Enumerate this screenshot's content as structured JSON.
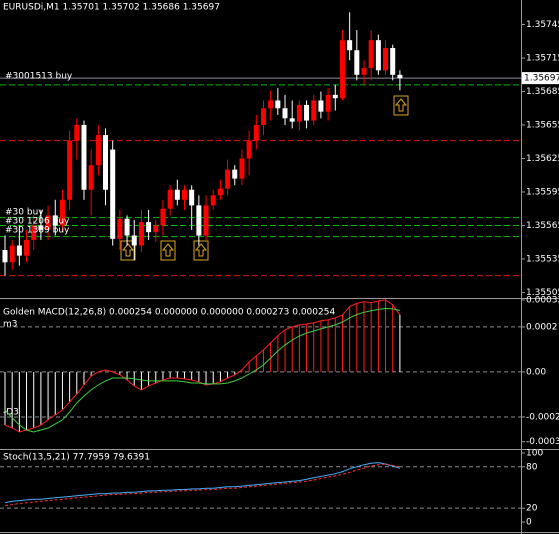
{
  "chart_data": [
    {
      "type": "candlestick",
      "title": "EURUSDi,M1  1.35701 1.35702 1.35686 1.35697",
      "up_color": "#ff0000",
      "down_color": "#ffffff",
      "open": [
        1.35543,
        1.35532,
        1.35547,
        1.35538,
        1.35552,
        1.35565,
        1.35561,
        1.35574,
        1.35565,
        1.35588,
        1.35641,
        1.35655,
        1.35597,
        1.35619,
        1.35646,
        1.35633,
        1.35553,
        1.35571,
        1.35556,
        1.35547,
        1.35568,
        1.35559,
        1.35565,
        1.3558,
        1.35597,
        1.35588,
        1.35597,
        1.35583,
        1.35556,
        1.35583,
        1.35592,
        1.35598,
        1.35615,
        1.35607,
        1.35625,
        1.35641,
        1.35655,
        1.3567,
        1.35677,
        1.3567,
        1.35661,
        1.35658,
        1.35673,
        1.35659,
        1.35677,
        1.35667,
        1.35682,
        1.35679,
        1.35731,
        1.35722,
        1.357,
        1.35706,
        1.35731,
        1.35704,
        1.35724,
        1.357
      ],
      "high": [
        1.35556,
        1.35552,
        1.35565,
        1.35561,
        1.35574,
        1.35579,
        1.35583,
        1.35588,
        1.35597,
        1.3565,
        1.35661,
        1.35659,
        1.35633,
        1.35655,
        1.35652,
        1.35641,
        1.35579,
        1.35574,
        1.3557,
        1.35579,
        1.35579,
        1.3557,
        1.35588,
        1.35601,
        1.35606,
        1.35601,
        1.35601,
        1.35592,
        1.35592,
        1.35597,
        1.35606,
        1.35624,
        1.35619,
        1.35633,
        1.3565,
        1.35664,
        1.35677,
        1.35686,
        1.35688,
        1.35682,
        1.35677,
        1.35677,
        1.35677,
        1.35682,
        1.35685,
        1.35688,
        1.35691,
        1.3574,
        1.35756,
        1.3574,
        1.35713,
        1.3574,
        1.35736,
        1.35731,
        1.35727,
        1.35704
      ],
      "low": [
        1.3552,
        1.35525,
        1.35529,
        1.35532,
        1.35543,
        1.35552,
        1.35552,
        1.35556,
        1.35559,
        1.35579,
        1.35624,
        1.35588,
        1.35574,
        1.3561,
        1.35583,
        1.35547,
        1.35543,
        1.35547,
        1.35534,
        1.35541,
        1.35552,
        1.3555,
        1.35556,
        1.35574,
        1.35583,
        1.35579,
        1.35561,
        1.35547,
        1.35552,
        1.35579,
        1.35588,
        1.35592,
        1.35601,
        1.35601,
        1.3561,
        1.35633,
        1.35646,
        1.35659,
        1.35664,
        1.35655,
        1.35652,
        1.3565,
        1.35652,
        1.35655,
        1.35661,
        1.35659,
        1.35668,
        1.35677,
        1.35713,
        1.35695,
        1.35691,
        1.35695,
        1.357,
        1.357,
        1.35695,
        1.35686
      ],
      "close": [
        1.35532,
        1.35547,
        1.35538,
        1.35552,
        1.35565,
        1.35561,
        1.35574,
        1.35565,
        1.35588,
        1.35641,
        1.35655,
        1.35597,
        1.35619,
        1.35646,
        1.35597,
        1.35553,
        1.35571,
        1.35556,
        1.35547,
        1.35568,
        1.35559,
        1.35565,
        1.3558,
        1.35597,
        1.35588,
        1.35597,
        1.35583,
        1.35556,
        1.35583,
        1.35592,
        1.35598,
        1.35615,
        1.35607,
        1.35625,
        1.35641,
        1.35655,
        1.3567,
        1.35677,
        1.3567,
        1.35661,
        1.35658,
        1.35673,
        1.35659,
        1.35677,
        1.35667,
        1.35682,
        1.35679,
        1.35731,
        1.35722,
        1.357,
        1.35706,
        1.35731,
        1.35704,
        1.35724,
        1.357,
        1.35697
      ],
      "ylim": [
        1.355,
        1.35767
      ],
      "yticks": [
        1.35745,
        1.35715,
        1.35685,
        1.35655,
        1.35625,
        1.35595,
        1.35565,
        1.35535,
        1.35505
      ],
      "last_price": 1.35697,
      "levels": [
        {
          "price": 1.35697,
          "color": "#8c8c9c",
          "dashed": false
        },
        {
          "price": 1.35691,
          "color": "#00c000",
          "dashed": true
        },
        {
          "price": 1.35641,
          "color": "#e01010",
          "dashed": true
        },
        {
          "price": 1.35572,
          "color": "#00c000",
          "dashed": true
        },
        {
          "price": 1.35565,
          "color": "#00c000",
          "dashed": true
        },
        {
          "price": 1.35555,
          "color": "#00c000",
          "dashed": true
        },
        {
          "price": 1.3552,
          "color": "#e01010",
          "dashed": true
        }
      ],
      "orders": [
        {
          "label": "#3001513 buy",
          "price": 1.35699
        },
        {
          "label": "#30 buy",
          "price": 1.35577
        },
        {
          "label": "#30 1206 buy",
          "price": 1.35569
        },
        {
          "label": "#30 1389 buy",
          "price": 1.35561
        }
      ]
    },
    {
      "type": "macd",
      "title": "Golden MACD(12,26,8) 0.000254 0.000000 0.000000 0.000273 0.000254",
      "annotations": [
        "m3",
        "-D3"
      ],
      "ylim": [
        -0.000338,
        0.000324
      ],
      "yticks": [
        0.00032,
        0.0002,
        {
          "value": 0,
          "label": "0.00"
        },
        -0.0002,
        -0.00031
      ],
      "levels": [
        0.0002,
        0,
        -0.0002
      ],
      "series": [
        {
          "color": "#ff2020",
          "values": [
            -0.000236,
            -0.000249,
            -0.000267,
            -0.000258,
            -0.000249,
            -0.000236,
            -0.000213,
            -0.000191,
            -0.000169,
            -0.000133,
            -9.8e-05,
            -5.8e-05,
            -1.8e-05,
            0,
            9e-06,
            0,
            -1.3e-05,
            -3.6e-05,
            -6.2e-05,
            -8e-05,
            -6.2e-05,
            -4.9e-05,
            -3.6e-05,
            -2.7e-05,
            -2.7e-05,
            -3.1e-05,
            -3.6e-05,
            -4.4e-05,
            -5.8e-05,
            -5.3e-05,
            -4.4e-05,
            -2.7e-05,
            -1.3e-05,
            9e-06,
            4.4e-05,
            7.1e-05,
            9.8e-05,
            0.000129,
            0.00016,
            0.000187,
            0.0002,
            0.000209,
            0.000213,
            0.000218,
            0.000227,
            0.000231,
            0.00024,
            0.000253,
            0.00029,
            0.000305,
            0.000312,
            0.000308,
            0.000315,
            0.00032,
            0.000298,
            0.000254
          ]
        },
        {
          "color": "#40d040",
          "values": [
            -0.000169,
            -0.000204,
            -0.000236,
            -0.000258,
            -0.000267,
            -0.000258,
            -0.000249,
            -0.000231,
            -0.000213,
            -0.000178,
            -0.000138,
            -0.000107,
            -8e-05,
            -5.8e-05,
            -4e-05,
            -2.7e-05,
            -2.7e-05,
            -2.7e-05,
            -3.1e-05,
            -3.6e-05,
            -4e-05,
            -4e-05,
            -4e-05,
            -4e-05,
            -4e-05,
            -4.4e-05,
            -4.9e-05,
            -4.9e-05,
            -5.3e-05,
            -5.3e-05,
            -5.3e-05,
            -4.9e-05,
            -4e-05,
            -2.7e-05,
            -9e-06,
            9e-06,
            3.1e-05,
            6.2e-05,
            9.3e-05,
            0.00012,
            0.000142,
            0.00016,
            0.000173,
            0.000182,
            0.000191,
            0.0002,
            0.000209,
            0.000222,
            0.00024,
            0.000255,
            0.000265,
            0.000272,
            0.000278,
            0.000282,
            0.00028,
            0.000273
          ]
        }
      ]
    },
    {
      "type": "stoch",
      "title": "Stoch(13,5,21) 77.7959 79.6391",
      "ylim": [
        -14.5,
        104.3
      ],
      "yticks": [
        100,
        80,
        20,
        0
      ],
      "levels": [
        80,
        20
      ],
      "series": [
        {
          "color": "#40b0ff",
          "dashed": false,
          "values": [
            28,
            30,
            31,
            32,
            33,
            33,
            34,
            35,
            36,
            37,
            38,
            39,
            40,
            41,
            41,
            42,
            42,
            43,
            43,
            44,
            45,
            45,
            46,
            46,
            47,
            47,
            48,
            48,
            49,
            49,
            50,
            51,
            51,
            52,
            53,
            54,
            55,
            56,
            57,
            58,
            59,
            60,
            62,
            64,
            66,
            68,
            70,
            73,
            77,
            80,
            83,
            85,
            86,
            84,
            81,
            77.7959
          ]
        },
        {
          "color": "#ff3030",
          "dashed": true,
          "values": [
            24,
            25,
            27,
            28,
            29,
            30,
            31,
            32,
            33,
            34,
            35,
            36,
            37,
            38,
            39,
            40,
            40,
            41,
            41,
            42,
            43,
            43,
            44,
            44,
            45,
            45,
            46,
            46,
            47,
            47,
            48,
            49,
            49,
            50,
            51,
            52,
            53,
            54,
            55,
            56,
            57,
            58,
            59,
            61,
            63,
            65,
            67,
            69,
            72,
            75,
            78,
            81,
            83,
            84,
            82,
            79.6391
          ]
        }
      ]
    }
  ]
}
